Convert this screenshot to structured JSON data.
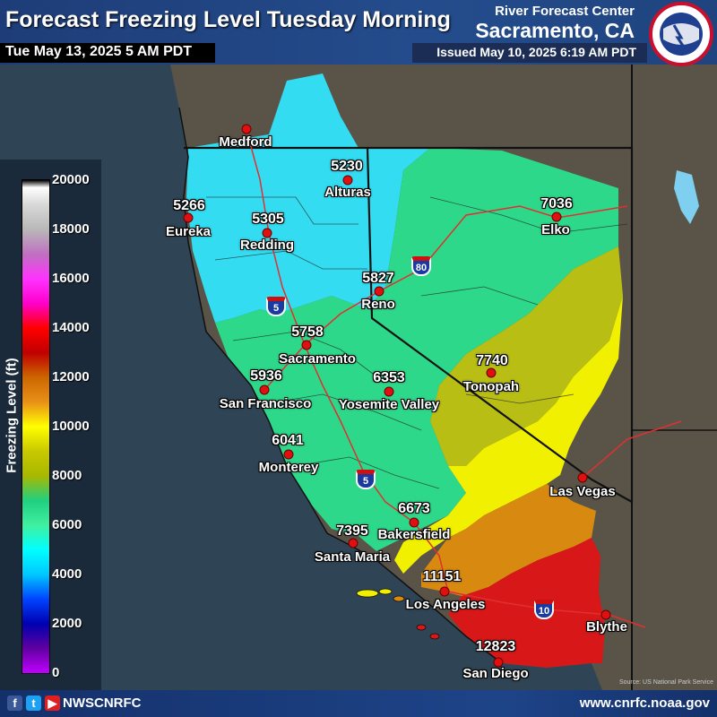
{
  "header": {
    "title": "Forecast Freezing Level Tuesday Morning",
    "valid_time": "Tue May 13, 2025 5 AM PDT",
    "center_label": "River Forecast Center",
    "center_office": "Sacramento, CA",
    "issued": "Issued May 10, 2025 6:19 AM PDT",
    "logo_icon": "nws-logo-icon"
  },
  "legend": {
    "axis_label": "Freezing Level (ft)",
    "ticks": [
      "20000",
      "18000",
      "16000",
      "14000",
      "12000",
      "10000",
      "8000",
      "6000",
      "4000",
      "2000",
      "0"
    ],
    "colors": {
      "0": "#c000ff",
      "2000": "#6000a0",
      "4000": "#0044ff",
      "6000": "#00ffff",
      "8000": "#20d080",
      "10000": "#ffff00",
      "12000": "#e89018",
      "14000": "#ff0000",
      "16000": "#ff00cc",
      "18000": "#c070c0",
      "20000": "#ffffff"
    }
  },
  "cities": [
    {
      "name": "Medford",
      "value": ""
    },
    {
      "name": "Alturas",
      "value": "5230"
    },
    {
      "name": "Eureka",
      "value": "5266"
    },
    {
      "name": "Redding",
      "value": "5305"
    },
    {
      "name": "Elko",
      "value": "7036"
    },
    {
      "name": "Reno",
      "value": "5827"
    },
    {
      "name": "Sacramento",
      "value": "5758"
    },
    {
      "name": "Tonopah",
      "value": "7740"
    },
    {
      "name": "San Francisco",
      "value": "5936"
    },
    {
      "name": "Yosemite Valley",
      "value": "6353"
    },
    {
      "name": "Monterey",
      "value": "6041"
    },
    {
      "name": "Las Vegas",
      "value": ""
    },
    {
      "name": "Bakersfield",
      "value": "6673"
    },
    {
      "name": "Santa Maria",
      "value": "7395"
    },
    {
      "name": "Los Angeles",
      "value": "11151"
    },
    {
      "name": "Blythe",
      "value": ""
    },
    {
      "name": "San Diego",
      "value": "12823"
    }
  ],
  "highways": [
    {
      "shield": "80"
    },
    {
      "shield": "5"
    },
    {
      "shield": "5"
    },
    {
      "shield": "10"
    }
  ],
  "footer": {
    "social_handle": "NWSCNRFC",
    "social_icons": [
      "facebook-icon",
      "twitter-icon",
      "youtube-icon"
    ],
    "website": "www.cnrfc.noaa.gov",
    "credit": "Source: US National Park Service"
  }
}
